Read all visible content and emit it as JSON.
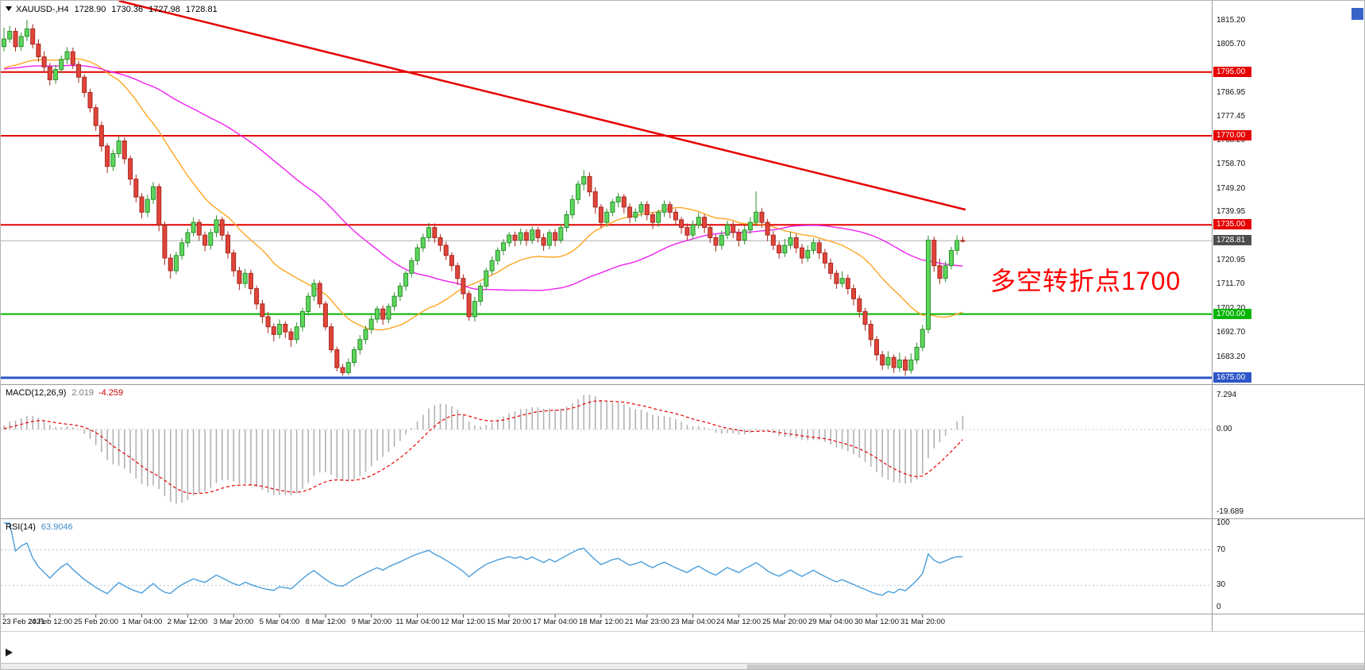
{
  "header": {
    "symbol": "XAUUSD-,H4",
    "open": "1728.90",
    "high": "1730.36",
    "low": "1727.98",
    "close": "1728.81"
  },
  "annotation": {
    "text": "多空转折点1700",
    "color": "#ff0000"
  },
  "indicators": {
    "macd": {
      "title": "MACD(12,26,9)",
      "main": "2.019",
      "signal": "-4.259",
      "axis_labels": [
        "7.294",
        "0.00",
        "-19.689"
      ]
    },
    "rsi": {
      "title": "RSI(14)",
      "value": "63.9046",
      "axis_labels": [
        "100",
        "70",
        "30",
        "0"
      ]
    }
  },
  "price_axis": {
    "labels": [
      {
        "text": "1815.20",
        "price": 1815.2
      },
      {
        "text": "1805.70",
        "price": 1805.7
      },
      {
        "text": "1786.95",
        "price": 1786.95
      },
      {
        "text": "1777.45",
        "price": 1777.45
      },
      {
        "text": "1768.20",
        "price": 1768.2
      },
      {
        "text": "1758.70",
        "price": 1758.7
      },
      {
        "text": "1749.20",
        "price": 1749.2
      },
      {
        "text": "1739.95",
        "price": 1739.95
      },
      {
        "text": "1720.95",
        "price": 1720.95
      },
      {
        "text": "1711.70",
        "price": 1711.7
      },
      {
        "text": "1702.20",
        "price": 1702.2
      },
      {
        "text": "1692.70",
        "price": 1692.7
      },
      {
        "text": "1683.20",
        "price": 1683.2
      }
    ],
    "badges": [
      {
        "text": "1795.00",
        "price": 1795.0,
        "color": "#e60000"
      },
      {
        "text": "1770.00",
        "price": 1770.0,
        "color": "#e60000"
      },
      {
        "text": "1735.00",
        "price": 1735.0,
        "color": "#e60000"
      },
      {
        "text": "1728.81",
        "price": 1728.81,
        "color": "#4d4d4d"
      },
      {
        "text": "1700.00",
        "price": 1700.0,
        "color": "#00b400"
      },
      {
        "text": "1675.00",
        "price": 1675.0,
        "color": "#2e56c8"
      }
    ]
  },
  "time_axis": {
    "candles_per_label": 8,
    "labels": [
      "23 Feb 2021",
      "24 Feb 12:00",
      "25 Feb 20:00",
      "1 Mar 04:00",
      "2 Mar 12:00",
      "3 Mar 20:00",
      "5 Mar 04:00",
      "8 Mar 12:00",
      "9 Mar 20:00",
      "11 Mar 04:00",
      "12 Mar 12:00",
      "15 Mar 20:00",
      "17 Mar 04:00",
      "18 Mar 12:00",
      "21 Mar 23:00",
      "23 Mar 04:00",
      "24 Mar 12:00",
      "25 Mar 20:00",
      "29 Mar 04:00",
      "30 Mar 12:00",
      "31 Mar 20:00"
    ]
  },
  "chart_data": {
    "type": "candlestick",
    "symbol": "XAUUSD-",
    "timeframe": "H4",
    "price_range": {
      "top": 1820.5,
      "bottom": 1673.4
    },
    "current_price": 1728.81,
    "bull": {
      "fill": "#5cd65c",
      "stroke": "#2d8f2d"
    },
    "bear": {
      "fill": "#e0453a",
      "stroke": "#a8271e"
    },
    "hlines": [
      {
        "price": 1795.0,
        "color": "#e60000",
        "w": 2
      },
      {
        "price": 1770.0,
        "color": "#e60000",
        "w": 2
      },
      {
        "price": 1735.0,
        "color": "#e60000",
        "w": 2
      },
      {
        "price": 1700.0,
        "color": "#00b400",
        "w": 2
      },
      {
        "price": 1675.0,
        "color": "#2e56c8",
        "w": 3
      }
    ],
    "trendline": {
      "from": {
        "candle": 20,
        "price": 1823.0
      },
      "to": {
        "candle": 167.5,
        "price": 1741.0
      },
      "color": "#e60000",
      "w": 2.5
    },
    "moving_averages": [
      {
        "type": "sma",
        "period": 21,
        "color": "#ffa520"
      },
      {
        "type": "sma",
        "period": 55,
        "color": "#f020f0"
      }
    ],
    "macd": {
      "fast": 12,
      "slow": 26,
      "signal": 9,
      "hist_color": "#b2b2b2",
      "signal_color": "#e60000"
    },
    "rsi": {
      "period": 14,
      "color": "#4a9edb",
      "levels": [
        30,
        70
      ]
    },
    "ma_seed": 1796,
    "candles": [
      [
        1805.0,
        1812.5,
        1803.2,
        1808.0
      ],
      [
        1808.0,
        1813.2,
        1806.5,
        1811.0
      ],
      [
        1811.0,
        1812.4,
        1803.1,
        1805.0
      ],
      [
        1805.0,
        1810.6,
        1803.4,
        1809.0
      ],
      [
        1809.0,
        1815.5,
        1807.2,
        1812.0
      ],
      [
        1812.0,
        1813.8,
        1804.3,
        1806.0
      ],
      [
        1806.0,
        1807.9,
        1799.1,
        1801.0
      ],
      [
        1801.0,
        1803.2,
        1795.0,
        1797.0
      ],
      [
        1797.0,
        1798.6,
        1789.8,
        1792.0
      ],
      [
        1792.0,
        1797.8,
        1790.4,
        1796.0
      ],
      [
        1796.0,
        1801.5,
        1794.6,
        1800.0
      ],
      [
        1800.0,
        1804.8,
        1798.2,
        1803.0
      ],
      [
        1803.0,
        1804.6,
        1796.3,
        1798.0
      ],
      [
        1798.0,
        1799.4,
        1790.8,
        1793.0
      ],
      [
        1793.0,
        1794.2,
        1785.1,
        1787.0
      ],
      [
        1787.0,
        1788.5,
        1779.2,
        1781.0
      ],
      [
        1781.0,
        1782.3,
        1771.9,
        1774.0
      ],
      [
        1774.0,
        1775.6,
        1763.8,
        1766.0
      ],
      [
        1766.0,
        1767.1,
        1755.4,
        1758.0
      ],
      [
        1758.0,
        1764.6,
        1756.2,
        1763.0
      ],
      [
        1763.0,
        1769.8,
        1761.5,
        1768.0
      ],
      [
        1768.0,
        1769.4,
        1758.9,
        1761.0
      ],
      [
        1761.0,
        1762.2,
        1750.6,
        1753.0
      ],
      [
        1753.0,
        1754.8,
        1743.9,
        1746.0
      ],
      [
        1746.0,
        1747.5,
        1737.6,
        1740.0
      ],
      [
        1740.0,
        1746.9,
        1738.1,
        1745.0
      ],
      [
        1745.0,
        1751.8,
        1743.2,
        1750.0
      ],
      [
        1750.0,
        1751.2,
        1732.5,
        1735.0
      ],
      [
        1735.0,
        1736.4,
        1719.3,
        1722.0
      ],
      [
        1722.0,
        1723.6,
        1713.9,
        1717.0
      ],
      [
        1717.0,
        1724.5,
        1715.6,
        1723.0
      ],
      [
        1723.0,
        1729.8,
        1721.4,
        1728.0
      ],
      [
        1728.0,
        1733.6,
        1726.2,
        1732.0
      ],
      [
        1732.0,
        1737.9,
        1730.5,
        1736.0
      ],
      [
        1736.0,
        1737.2,
        1728.8,
        1731.0
      ],
      [
        1731.0,
        1732.4,
        1724.6,
        1727.0
      ],
      [
        1727.0,
        1733.5,
        1725.3,
        1732.0
      ],
      [
        1732.0,
        1738.8,
        1730.2,
        1737.0
      ],
      [
        1737.0,
        1738.2,
        1728.9,
        1731.0
      ],
      [
        1731.0,
        1732.5,
        1721.8,
        1724.0
      ],
      [
        1724.0,
        1725.3,
        1714.7,
        1717.0
      ],
      [
        1717.0,
        1718.6,
        1709.4,
        1712.0
      ],
      [
        1712.0,
        1717.8,
        1710.1,
        1716.0
      ],
      [
        1716.0,
        1717.4,
        1707.6,
        1710.0
      ],
      [
        1710.0,
        1711.2,
        1701.8,
        1704.0
      ],
      [
        1704.0,
        1705.6,
        1696.4,
        1699.0
      ],
      [
        1699.0,
        1700.8,
        1692.5,
        1695.0
      ],
      [
        1695.0,
        1696.3,
        1689.2,
        1692.0
      ],
      [
        1692.0,
        1697.9,
        1690.3,
        1696.0
      ],
      [
        1696.0,
        1697.2,
        1690.6,
        1693.0
      ],
      [
        1693.0,
        1694.4,
        1687.1,
        1690.0
      ],
      [
        1690.0,
        1696.8,
        1688.4,
        1695.0
      ],
      [
        1695.0,
        1702.5,
        1693.2,
        1701.0
      ],
      [
        1701.0,
        1708.4,
        1699.5,
        1707.0
      ],
      [
        1707.0,
        1713.6,
        1705.2,
        1712.0
      ],
      [
        1712.0,
        1713.1,
        1702.4,
        1704.0
      ],
      [
        1704.0,
        1705.2,
        1693.6,
        1695.0
      ],
      [
        1695.0,
        1696.4,
        1684.8,
        1686.0
      ],
      [
        1686.0,
        1687.2,
        1677.5,
        1679.0
      ],
      [
        1679.0,
        1680.4,
        1675.9,
        1677.0
      ],
      [
        1677.0,
        1682.6,
        1676.1,
        1681.0
      ],
      [
        1681.0,
        1687.2,
        1679.4,
        1686.0
      ],
      [
        1686.0,
        1691.8,
        1684.1,
        1690.0
      ],
      [
        1690.0,
        1695.4,
        1688.2,
        1694.0
      ],
      [
        1694.0,
        1699.6,
        1692.3,
        1698.0
      ],
      [
        1698.0,
        1703.2,
        1696.5,
        1702.0
      ],
      [
        1702.0,
        1703.4,
        1695.8,
        1698.0
      ],
      [
        1698.0,
        1704.2,
        1696.4,
        1703.0
      ],
      [
        1703.0,
        1708.6,
        1701.3,
        1707.0
      ],
      [
        1707.0,
        1712.4,
        1705.2,
        1711.0
      ],
      [
        1711.0,
        1717.0,
        1709.1,
        1716.0
      ],
      [
        1716.0,
        1722.2,
        1714.3,
        1721.0
      ],
      [
        1721.0,
        1727.5,
        1719.2,
        1726.0
      ],
      [
        1726.0,
        1731.6,
        1724.4,
        1730.0
      ],
      [
        1730.0,
        1735.8,
        1728.5,
        1734.0
      ],
      [
        1734.0,
        1735.6,
        1727.9,
        1730.0
      ],
      [
        1730.0,
        1731.4,
        1724.6,
        1727.0
      ],
      [
        1727.0,
        1728.5,
        1721.2,
        1723.0
      ],
      [
        1723.0,
        1724.3,
        1716.8,
        1719.0
      ],
      [
        1719.0,
        1720.2,
        1711.4,
        1714.0
      ],
      [
        1714.0,
        1715.6,
        1705.8,
        1708.0
      ],
      [
        1708.0,
        1709.2,
        1697.4,
        1699.0
      ],
      [
        1699.0,
        1706.8,
        1697.1,
        1705.0
      ],
      [
        1705.0,
        1712.4,
        1703.3,
        1711.0
      ],
      [
        1711.0,
        1718.2,
        1709.5,
        1717.0
      ],
      [
        1717.0,
        1722.6,
        1715.4,
        1721.0
      ],
      [
        1721.0,
        1726.2,
        1719.3,
        1725.0
      ],
      [
        1725.0,
        1729.4,
        1723.1,
        1728.0
      ],
      [
        1728.0,
        1732.2,
        1726.4,
        1731.0
      ],
      [
        1731.0,
        1732.4,
        1726.6,
        1729.0
      ],
      [
        1729.0,
        1733.6,
        1727.2,
        1732.0
      ],
      [
        1732.0,
        1733.2,
        1726.8,
        1729.0
      ],
      [
        1729.0,
        1734.4,
        1727.5,
        1733.0
      ],
      [
        1733.0,
        1734.2,
        1728.1,
        1730.0
      ],
      [
        1730.0,
        1731.6,
        1724.8,
        1727.0
      ],
      [
        1727.0,
        1733.2,
        1725.4,
        1732.0
      ],
      [
        1732.0,
        1733.4,
        1726.6,
        1729.0
      ],
      [
        1729.0,
        1735.2,
        1727.8,
        1734.0
      ],
      [
        1734.0,
        1740.6,
        1732.3,
        1739.0
      ],
      [
        1739.0,
        1746.8,
        1737.4,
        1745.0
      ],
      [
        1745.0,
        1752.4,
        1743.2,
        1751.0
      ],
      [
        1751.0,
        1756.5,
        1748.6,
        1754.0
      ],
      [
        1754.0,
        1755.6,
        1746.2,
        1748.0
      ],
      [
        1748.0,
        1749.8,
        1739.4,
        1742.0
      ],
      [
        1742.0,
        1743.2,
        1733.6,
        1736.0
      ],
      [
        1736.0,
        1741.4,
        1734.2,
        1740.0
      ],
      [
        1740.0,
        1745.2,
        1738.4,
        1744.0
      ],
      [
        1744.0,
        1747.6,
        1742.1,
        1746.0
      ],
      [
        1746.0,
        1747.2,
        1739.5,
        1742.0
      ],
      [
        1742.0,
        1743.4,
        1735.8,
        1738.0
      ],
      [
        1738.0,
        1741.6,
        1736.2,
        1740.0
      ],
      [
        1740.0,
        1744.2,
        1738.3,
        1743.0
      ],
      [
        1743.0,
        1744.4,
        1736.8,
        1739.0
      ],
      [
        1739.0,
        1740.2,
        1733.4,
        1736.0
      ],
      [
        1736.0,
        1741.0,
        1734.3,
        1740.0
      ],
      [
        1740.0,
        1744.6,
        1738.2,
        1743.0
      ],
      [
        1743.0,
        1744.2,
        1737.6,
        1740.0
      ],
      [
        1740.0,
        1741.4,
        1734.8,
        1737.0
      ],
      [
        1737.0,
        1738.2,
        1731.5,
        1734.0
      ],
      [
        1734.0,
        1735.6,
        1728.8,
        1731.0
      ],
      [
        1731.0,
        1736.8,
        1729.4,
        1735.0
      ],
      [
        1735.0,
        1740.0,
        1733.5,
        1738.0
      ],
      [
        1738.0,
        1739.2,
        1731.8,
        1734.0
      ],
      [
        1734.0,
        1735.4,
        1727.9,
        1730.0
      ],
      [
        1730.0,
        1731.2,
        1724.6,
        1727.0
      ],
      [
        1727.0,
        1732.8,
        1725.3,
        1731.0
      ],
      [
        1731.0,
        1736.6,
        1729.4,
        1735.0
      ],
      [
        1735.0,
        1736.4,
        1729.8,
        1732.0
      ],
      [
        1732.0,
        1733.6,
        1726.5,
        1729.0
      ],
      [
        1729.0,
        1734.8,
        1727.3,
        1733.0
      ],
      [
        1733.0,
        1738.0,
        1731.4,
        1736.0
      ],
      [
        1736.0,
        1748.2,
        1734.5,
        1740.0
      ],
      [
        1740.0,
        1741.6,
        1733.9,
        1736.0
      ],
      [
        1736.0,
        1737.4,
        1728.6,
        1731.0
      ],
      [
        1731.0,
        1732.8,
        1725.1,
        1727.0
      ],
      [
        1727.0,
        1728.6,
        1721.8,
        1724.0
      ],
      [
        1724.0,
        1729.6,
        1722.4,
        1727.0
      ],
      [
        1727.0,
        1732.4,
        1725.6,
        1730.0
      ],
      [
        1730.0,
        1731.4,
        1723.9,
        1726.0
      ],
      [
        1726.0,
        1727.6,
        1719.8,
        1722.0
      ],
      [
        1722.0,
        1727.0,
        1720.5,
        1725.0
      ],
      [
        1725.0,
        1729.8,
        1723.4,
        1728.0
      ],
      [
        1728.0,
        1729.4,
        1721.6,
        1724.0
      ],
      [
        1724.0,
        1725.6,
        1717.9,
        1720.0
      ],
      [
        1720.0,
        1721.8,
        1713.6,
        1716.0
      ],
      [
        1716.0,
        1717.4,
        1709.9,
        1712.0
      ],
      [
        1712.0,
        1716.8,
        1710.4,
        1714.0
      ],
      [
        1714.0,
        1715.4,
        1707.7,
        1710.0
      ],
      [
        1710.0,
        1711.6,
        1703.4,
        1706.0
      ],
      [
        1706.0,
        1707.4,
        1698.6,
        1701.0
      ],
      [
        1701.0,
        1702.4,
        1693.5,
        1696.0
      ],
      [
        1696.0,
        1697.6,
        1687.3,
        1690.0
      ],
      [
        1690.0,
        1691.4,
        1681.7,
        1684.0
      ],
      [
        1684.0,
        1685.6,
        1678.0,
        1680.0
      ],
      [
        1680.0,
        1685.4,
        1678.4,
        1683.0
      ],
      [
        1683.0,
        1684.2,
        1676.9,
        1679.0
      ],
      [
        1679.0,
        1684.8,
        1677.3,
        1682.0
      ],
      [
        1682.0,
        1683.4,
        1675.8,
        1678.0
      ],
      [
        1678.0,
        1684.6,
        1676.6,
        1682.0
      ],
      [
        1682.0,
        1688.8,
        1680.4,
        1687.0
      ],
      [
        1687.0,
        1695.8,
        1685.5,
        1694.0
      ],
      [
        1694.0,
        1730.8,
        1692.4,
        1729.0
      ],
      [
        1729.0,
        1730.4,
        1716.6,
        1719.0
      ],
      [
        1719.0,
        1721.8,
        1711.9,
        1714.0
      ],
      [
        1714.0,
        1720.8,
        1712.5,
        1719.0
      ],
      [
        1719.0,
        1726.4,
        1717.6,
        1725.0
      ],
      [
        1725.0,
        1731.0,
        1723.3,
        1728.9
      ],
      [
        1728.9,
        1730.4,
        1728.0,
        1728.8
      ]
    ]
  }
}
